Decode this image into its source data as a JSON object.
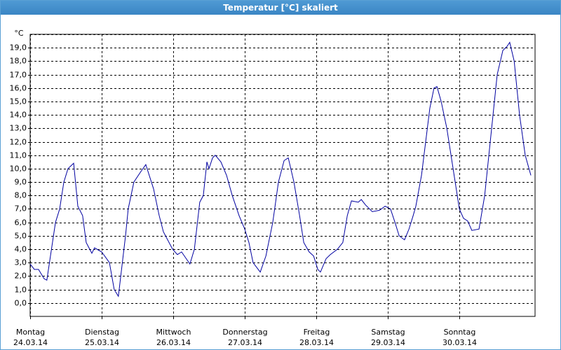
{
  "chart_data": {
    "type": "line",
    "title": "Temperatur [°C] skaliert",
    "y_unit": "°C",
    "x": [
      0,
      1.4,
      2.8,
      4.7,
      5.6,
      8.5,
      9.9,
      11.3,
      12.7,
      14.6,
      16.0,
      17.6,
      18.8,
      20.7,
      21.6,
      24.0,
      26.6,
      28.2,
      29.6,
      32.0,
      32.9,
      34.8,
      37.2,
      38.8,
      41.4,
      43.3,
      44.7,
      47.8,
      49.4,
      50.8,
      53.6,
      55.1,
      56.9,
      58.1,
      59.3,
      60.0,
      61.2,
      62.1,
      64.0,
      65.9,
      67.8,
      70.1,
      72.0,
      73.4,
      74.8,
      77.2,
      79.1,
      81.4,
      83.3,
      85.2,
      86.6,
      88.5,
      90.4,
      91.8,
      93.6,
      95.1,
      96.5,
      97.4,
      99.3,
      100.7,
      103.1,
      104.9,
      106.4,
      107.8,
      110.1,
      111.1,
      112.5,
      114.8,
      117.2,
      119.1,
      120.9,
      122.4,
      123.8,
      125.6,
      127.1,
      128.5,
      129.4,
      131.3,
      132.7,
      134.1,
      135.5,
      136.5,
      137.9,
      139.8,
      141.2,
      142.6,
      144.0,
      145.4,
      146.8,
      148.2,
      150.6,
      152.5,
      153.9,
      155.3,
      156.7,
      158.6,
      160.0,
      160.9,
      162.4,
      164.2,
      166.1,
      168.0
    ],
    "series": [
      {
        "name": "Temperatur",
        "color": "#0000a0",
        "values": [
          2.9,
          2.5,
          2.5,
          1.8,
          1.7,
          6.0,
          7.0,
          9.0,
          10.0,
          10.4,
          7.2,
          6.5,
          4.5,
          3.7,
          4.1,
          3.8,
          3.0,
          1.0,
          0.5,
          5.0,
          7.0,
          9.0,
          9.8,
          10.3,
          8.5,
          6.5,
          5.3,
          4.0,
          3.6,
          3.8,
          2.9,
          4.0,
          7.5,
          8.0,
          10.5,
          10.0,
          10.8,
          11.0,
          10.5,
          9.5,
          8.0,
          6.5,
          5.5,
          4.5,
          3.0,
          2.3,
          3.5,
          6.0,
          9.0,
          10.6,
          10.8,
          9.0,
          6.5,
          4.5,
          3.8,
          3.5,
          2.5,
          2.3,
          3.3,
          3.6,
          4.0,
          4.5,
          6.5,
          7.6,
          7.5,
          7.7,
          7.3,
          6.8,
          6.9,
          7.2,
          7.0,
          6.0,
          5.0,
          4.7,
          5.5,
          6.5,
          7.2,
          9.5,
          12.0,
          14.5,
          16.0,
          16.1,
          15.0,
          13.0,
          11.0,
          9.0,
          7.0,
          6.3,
          6.1,
          5.4,
          5.5,
          8.0,
          11.0,
          14.0,
          17.0,
          18.8,
          19.1,
          19.4,
          18.0,
          14.0,
          11.0,
          9.5
        ]
      }
    ],
    "xlim": [
      0,
      169.4
    ],
    "xticks": [
      {
        "value": 0,
        "label": "Montag"
      },
      {
        "value": 24,
        "label": "Dienstag"
      },
      {
        "value": 48,
        "label": "Mittwoch"
      },
      {
        "value": 72,
        "label": "Donnerstag"
      },
      {
        "value": 96,
        "label": "Freitag"
      },
      {
        "value": 120,
        "label": "Samstag"
      },
      {
        "value": 144,
        "label": "Sonntag"
      }
    ],
    "xtick_dates": [
      "24.03.14",
      "25.03.14",
      "26.03.14",
      "27.03.14",
      "28.03.14",
      "29.03.14",
      "30.03.14"
    ],
    "ylim": [
      -1,
      20
    ],
    "yticks": [
      {
        "value": 0,
        "label": "0,0"
      },
      {
        "value": 1,
        "label": "1,0"
      },
      {
        "value": 2,
        "label": "2,0"
      },
      {
        "value": 3,
        "label": "3,0"
      },
      {
        "value": 4,
        "label": "4,0"
      },
      {
        "value": 5,
        "label": "5,0"
      },
      {
        "value": 6,
        "label": "6,0"
      },
      {
        "value": 7,
        "label": "7,0"
      },
      {
        "value": 8,
        "label": "8,0"
      },
      {
        "value": 9,
        "label": "9,0"
      },
      {
        "value": 10,
        "label": "10,0"
      },
      {
        "value": 11,
        "label": "11,0"
      },
      {
        "value": 12,
        "label": "12,0"
      },
      {
        "value": 13,
        "label": "13,0"
      },
      {
        "value": 14,
        "label": "14,0"
      },
      {
        "value": 15,
        "label": "15,0"
      },
      {
        "value": 16,
        "label": "16,0"
      },
      {
        "value": 17,
        "label": "17,0"
      },
      {
        "value": 18,
        "label": "18,0"
      },
      {
        "value": 19,
        "label": "19,0"
      }
    ],
    "grid": true
  }
}
